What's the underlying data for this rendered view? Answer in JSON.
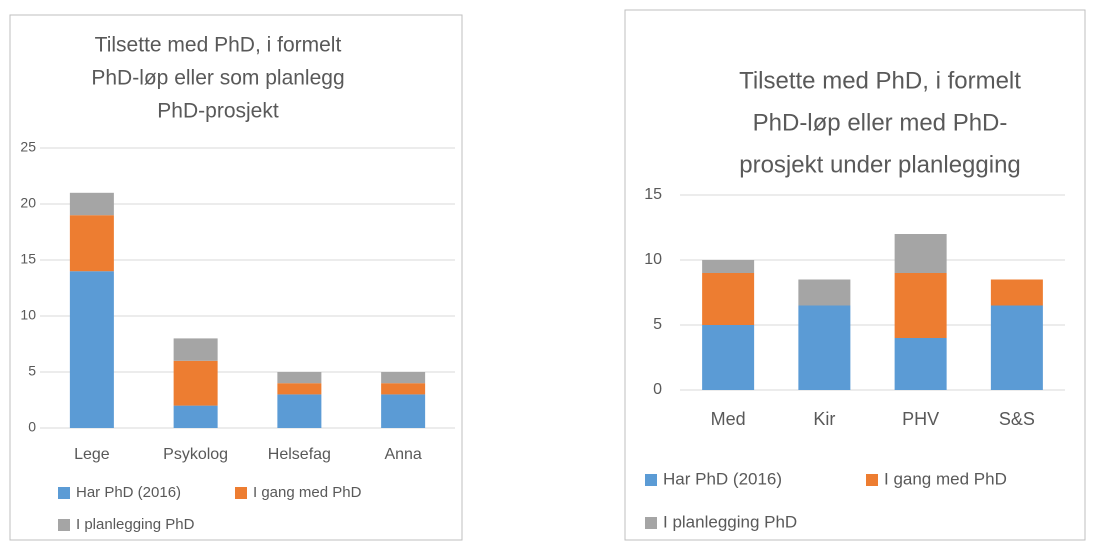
{
  "chart_data": [
    {
      "type": "stacked_bar",
      "title": [
        "Tilsette med PhD, i formelt",
        "PhD-løp eller som planlegg",
        "PhD-prosjekt"
      ],
      "categories": [
        "Lege",
        "Psykolog",
        "Helsefag",
        "Anna"
      ],
      "series": [
        {
          "name": "Har PhD (2016)",
          "color": "#5b9bd5",
          "values": [
            14,
            2,
            3,
            3
          ]
        },
        {
          "name": "I gang med PhD",
          "color": "#ed7d31",
          "values": [
            5,
            4,
            1,
            1
          ]
        },
        {
          "name": "I planlegging PhD",
          "color": "#a5a5a5",
          "values": [
            2,
            2,
            1,
            1
          ]
        }
      ],
      "ylim": [
        0,
        25
      ],
      "yticks": [
        0,
        5,
        10,
        15,
        20,
        25
      ],
      "grid": true,
      "legend": "bottom"
    },
    {
      "type": "stacked_bar",
      "title": [
        "Tilsette med PhD, i formelt",
        "PhD-løp eller med PhD-",
        "prosjekt under planlegging"
      ],
      "categories": [
        "Med",
        "Kir",
        "PHV",
        "S&S"
      ],
      "series": [
        {
          "name": "Har PhD (2016)",
          "color": "#5b9bd5",
          "values": [
            5,
            6.5,
            4,
            6.5
          ]
        },
        {
          "name": "I gang med PhD",
          "color": "#ed7d31",
          "values": [
            4,
            0,
            5,
            2
          ]
        },
        {
          "name": "I planlegging PhD",
          "color": "#a5a5a5",
          "values": [
            1,
            2,
            3,
            0
          ]
        }
      ],
      "ylim": [
        0,
        15
      ],
      "yticks": [
        0,
        5,
        10,
        15
      ],
      "grid": true,
      "legend": "bottom"
    }
  ]
}
